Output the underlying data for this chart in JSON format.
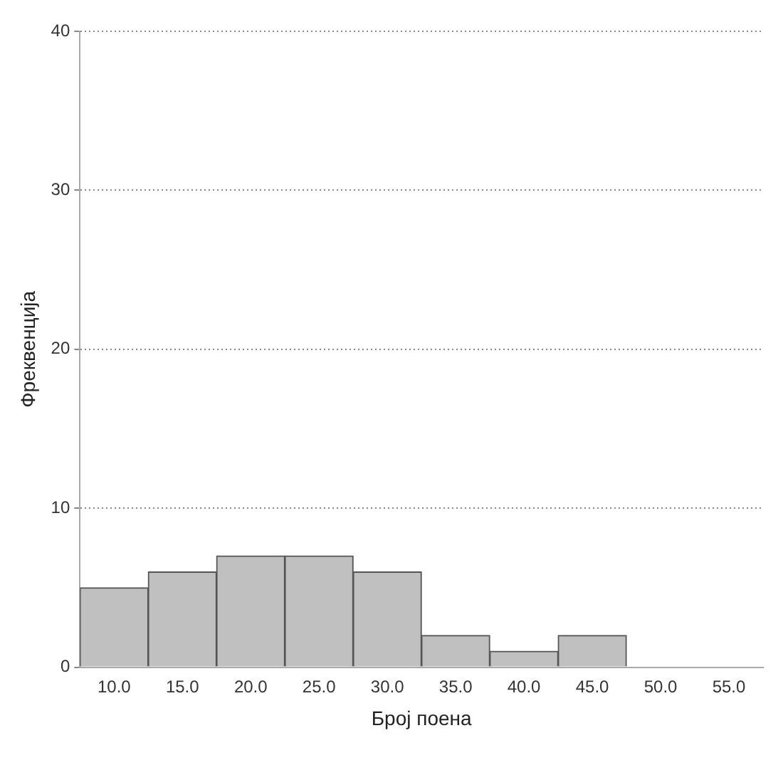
{
  "chart_data": {
    "type": "histogram",
    "xlabel": "Број поена",
    "ylabel": "Фреквенција",
    "bins": [
      7.5,
      12.5,
      17.5,
      22.5,
      27.5,
      32.5,
      37.5,
      42.5,
      47.5
    ],
    "values": [
      5,
      6,
      7,
      7,
      6,
      2,
      1,
      2
    ],
    "color": "#c0c0c0",
    "xlim": [
      7.5,
      57.5
    ],
    "xticks": [
      {
        "value": 10,
        "label": "10.0"
      },
      {
        "value": 15,
        "label": "15.0"
      },
      {
        "value": 20,
        "label": "20.0"
      },
      {
        "value": 25,
        "label": "25.0"
      },
      {
        "value": 30,
        "label": "30.0"
      },
      {
        "value": 35,
        "label": "35.0"
      },
      {
        "value": 40,
        "label": "40.0"
      },
      {
        "value": 45,
        "label": "45.0"
      },
      {
        "value": 50,
        "label": "50.0"
      },
      {
        "value": 55,
        "label": "55.0"
      }
    ],
    "ylim": [
      0,
      40
    ],
    "yticks": [
      0,
      10,
      20,
      30,
      40
    ],
    "grid": "y",
    "legend": false
  }
}
